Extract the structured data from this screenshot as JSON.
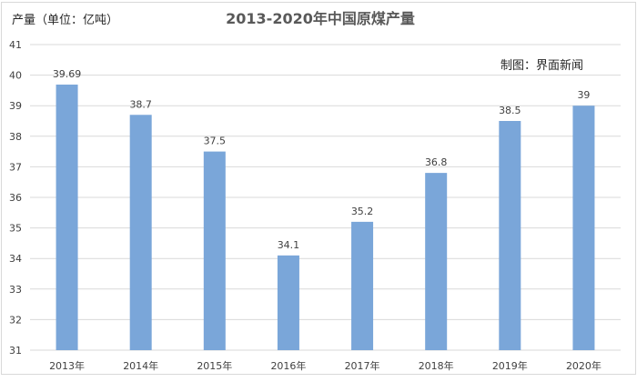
{
  "chart_data": {
    "type": "bar",
    "title": "2013-2020年中国原煤产量",
    "unit_label": "产量（单位：亿吨）",
    "credit": "制图：界面新闻",
    "categories": [
      "2013年",
      "2014年",
      "2015年",
      "2016年",
      "2017年",
      "2018年",
      "2019年",
      "2020年"
    ],
    "values": [
      39.69,
      38.7,
      37.5,
      34.1,
      35.2,
      36.8,
      38.5,
      39
    ],
    "value_labels": [
      "39.69",
      "38.7",
      "37.5",
      "34.1",
      "35.2",
      "36.8",
      "38.5",
      "39"
    ],
    "ylim": [
      31,
      41
    ],
    "yticks": [
      31,
      32,
      33,
      34,
      35,
      36,
      37,
      38,
      39,
      40,
      41
    ],
    "grid": true,
    "legend": "none",
    "bar_color": "#7aa6d9",
    "grid_color": "#d9d9d9"
  }
}
